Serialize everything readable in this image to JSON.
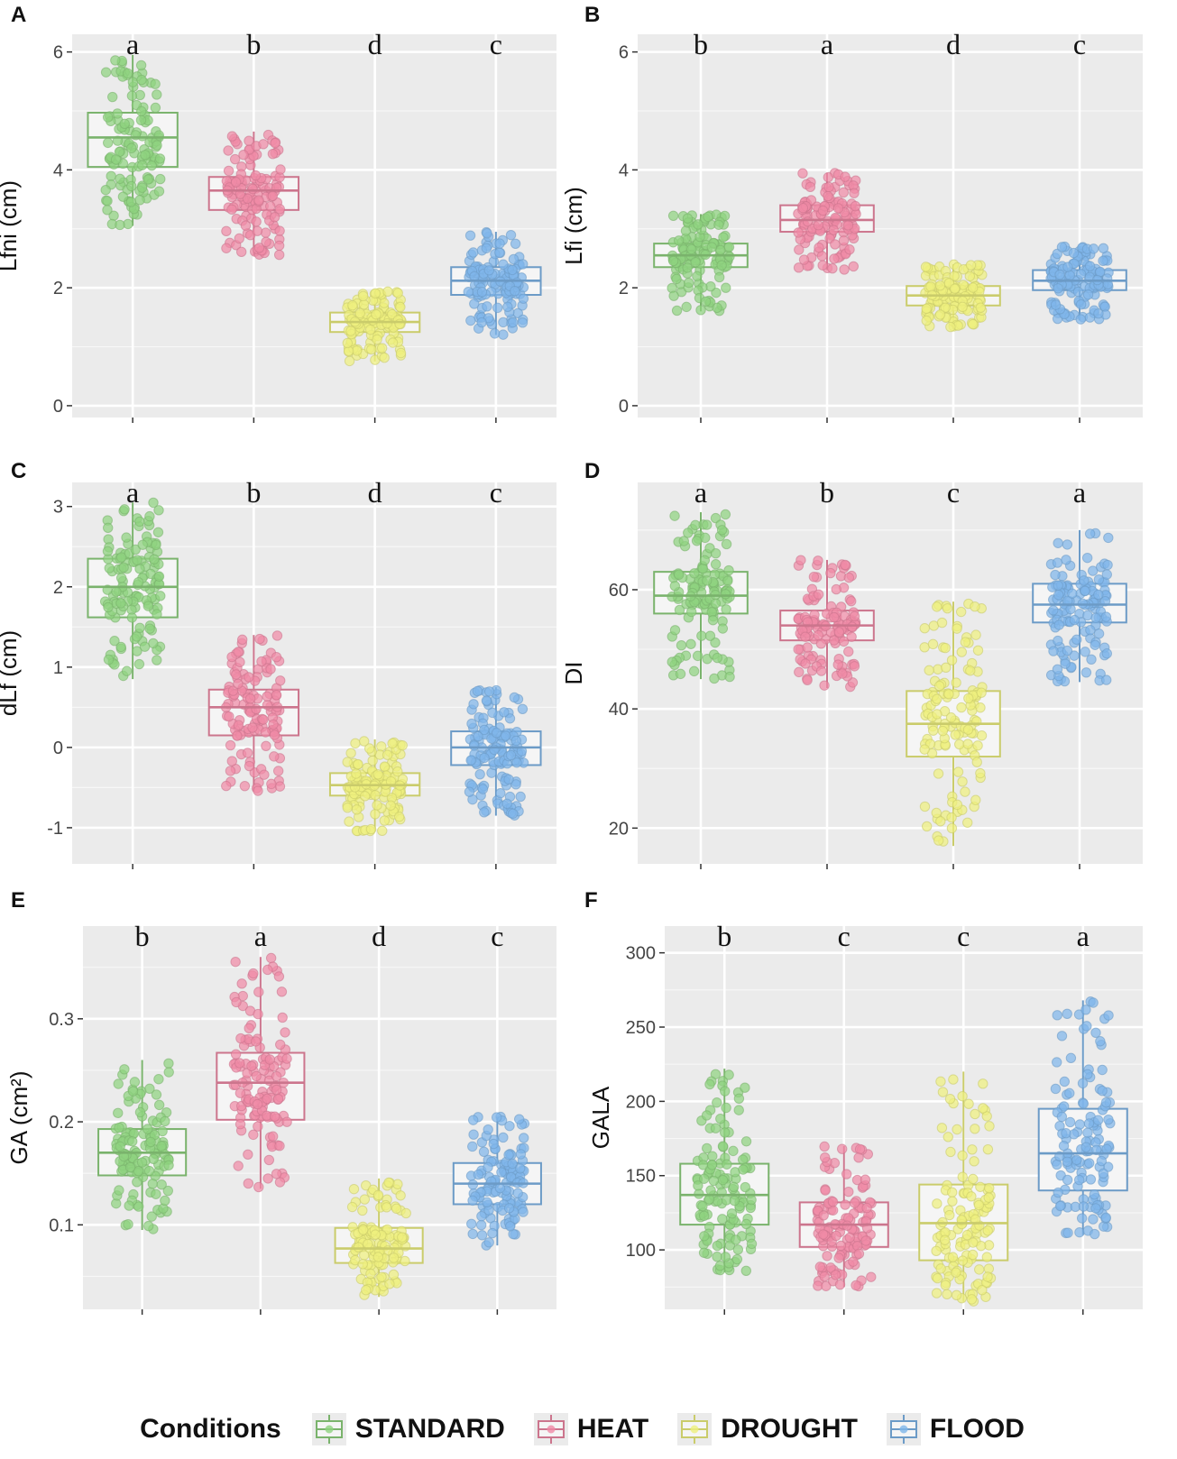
{
  "legend": {
    "title": "Conditions",
    "items": [
      {
        "label": "STANDARD",
        "color": "#8fd37f"
      },
      {
        "label": "HEAT",
        "color": "#f08aa6"
      },
      {
        "label": "DROUGHT",
        "color": "#eef07e"
      },
      {
        "label": "FLOOD",
        "color": "#7fb6ea"
      }
    ]
  },
  "chart_data": [
    {
      "panel": "A",
      "type": "box",
      "ylabel": "Lfni (cm)",
      "categories": [
        "STANDARD",
        "HEAT",
        "DROUGHT",
        "FLOOD"
      ],
      "ylim": [
        -0.2,
        6.3
      ],
      "yticks": [
        0,
        2,
        4,
        6
      ],
      "ytick_labels": [
        "0",
        "2",
        "4",
        "6"
      ],
      "letters": [
        "a",
        "b",
        "d",
        "c"
      ],
      "series": [
        {
          "name": "STANDARD",
          "q1": 4.05,
          "median": 4.55,
          "q3": 4.97,
          "whisker_low": 3.05,
          "whisker_high": 5.95
        },
        {
          "name": "HEAT",
          "q1": 3.32,
          "median": 3.65,
          "q3": 3.88,
          "whisker_low": 2.55,
          "whisker_high": 4.65
        },
        {
          "name": "DROUGHT",
          "q1": 1.25,
          "median": 1.42,
          "q3": 1.58,
          "whisker_low": 0.75,
          "whisker_high": 1.95
        },
        {
          "name": "FLOOD",
          "q1": 1.88,
          "median": 2.12,
          "q3": 2.35,
          "whisker_low": 1.2,
          "whisker_high": 2.95
        }
      ]
    },
    {
      "panel": "B",
      "type": "box",
      "ylabel": "Lfi (cm)",
      "categories": [
        "STANDARD",
        "HEAT",
        "DROUGHT",
        "FLOOD"
      ],
      "ylim": [
        -0.2,
        6.3
      ],
      "yticks": [
        0,
        2,
        4,
        6
      ],
      "ytick_labels": [
        "0",
        "2",
        "4",
        "6"
      ],
      "letters": [
        "b",
        "a",
        "d",
        "c"
      ],
      "series": [
        {
          "name": "STANDARD",
          "q1": 2.35,
          "median": 2.55,
          "q3": 2.75,
          "whisker_low": 1.6,
          "whisker_high": 3.25
        },
        {
          "name": "HEAT",
          "q1": 2.95,
          "median": 3.15,
          "q3": 3.4,
          "whisker_low": 2.3,
          "whisker_high": 3.95
        },
        {
          "name": "DROUGHT",
          "q1": 1.7,
          "median": 1.87,
          "q3": 2.03,
          "whisker_low": 1.3,
          "whisker_high": 2.4
        },
        {
          "name": "FLOOD",
          "q1": 1.96,
          "median": 2.12,
          "q3": 2.3,
          "whisker_low": 1.45,
          "whisker_high": 2.7
        }
      ]
    },
    {
      "panel": "C",
      "type": "box",
      "ylabel": "dLf (cm)",
      "categories": [
        "STANDARD",
        "HEAT",
        "DROUGHT",
        "FLOOD"
      ],
      "ylim": [
        -1.45,
        3.3
      ],
      "yticks": [
        -1,
        0,
        1,
        2,
        3
      ],
      "ytick_labels": [
        "-1",
        "0",
        "1",
        "2",
        "3"
      ],
      "letters": [
        "a",
        "b",
        "d",
        "c"
      ],
      "series": [
        {
          "name": "STANDARD",
          "q1": 1.62,
          "median": 2.0,
          "q3": 2.35,
          "whisker_low": 0.85,
          "whisker_high": 3.05
        },
        {
          "name": "HEAT",
          "q1": 0.15,
          "median": 0.5,
          "q3": 0.72,
          "whisker_low": -0.55,
          "whisker_high": 1.4
        },
        {
          "name": "DROUGHT",
          "q1": -0.6,
          "median": -0.47,
          "q3": -0.32,
          "whisker_low": -1.05,
          "whisker_high": 0.1
        },
        {
          "name": "FLOOD",
          "q1": -0.22,
          "median": 0.0,
          "q3": 0.2,
          "whisker_low": -0.85,
          "whisker_high": 0.75
        }
      ]
    },
    {
      "panel": "D",
      "type": "box",
      "ylabel": "DI",
      "categories": [
        "STANDARD",
        "HEAT",
        "DROUGHT",
        "FLOOD"
      ],
      "ylim": [
        14,
        78
      ],
      "yticks": [
        20,
        40,
        60
      ],
      "ytick_labels": [
        "20",
        "40",
        "60"
      ],
      "letters": [
        "a",
        "b",
        "c",
        "a"
      ],
      "series": [
        {
          "name": "STANDARD",
          "q1": 56.0,
          "median": 59.0,
          "q3": 63.0,
          "whisker_low": 45.0,
          "whisker_high": 73.0
        },
        {
          "name": "HEAT",
          "q1": 51.5,
          "median": 54.0,
          "q3": 56.5,
          "whisker_low": 43.5,
          "whisker_high": 65.0
        },
        {
          "name": "DROUGHT",
          "q1": 32.0,
          "median": 37.5,
          "q3": 43.0,
          "whisker_low": 17.0,
          "whisker_high": 58.0
        },
        {
          "name": "FLOOD",
          "q1": 54.5,
          "median": 57.5,
          "q3": 61.0,
          "whisker_low": 44.5,
          "whisker_high": 70.0
        }
      ]
    },
    {
      "panel": "E",
      "type": "box",
      "ylabel": "GA (cm²)",
      "categories": [
        "STANDARD",
        "HEAT",
        "DROUGHT",
        "FLOOD"
      ],
      "ylim": [
        0.018,
        0.39
      ],
      "yticks": [
        0.1,
        0.2,
        0.3
      ],
      "ytick_labels": [
        "0.1",
        "0.2",
        "0.3"
      ],
      "letters": [
        "b",
        "a",
        "d",
        "c"
      ],
      "series": [
        {
          "name": "STANDARD",
          "q1": 0.148,
          "median": 0.17,
          "q3": 0.193,
          "whisker_low": 0.095,
          "whisker_high": 0.26
        },
        {
          "name": "HEAT",
          "q1": 0.202,
          "median": 0.238,
          "q3": 0.267,
          "whisker_low": 0.135,
          "whisker_high": 0.36
        },
        {
          "name": "DROUGHT",
          "q1": 0.063,
          "median": 0.077,
          "q3": 0.097,
          "whisker_low": 0.03,
          "whisker_high": 0.145
        },
        {
          "name": "FLOOD",
          "q1": 0.12,
          "median": 0.14,
          "q3": 0.16,
          "whisker_low": 0.08,
          "whisker_high": 0.205
        }
      ]
    },
    {
      "panel": "F",
      "type": "box",
      "ylabel": "GALA",
      "categories": [
        "STANDARD",
        "HEAT",
        "DROUGHT",
        "FLOOD"
      ],
      "ylim": [
        60,
        318
      ],
      "yticks": [
        100,
        150,
        200,
        250,
        300
      ],
      "ytick_labels": [
        "100",
        "150",
        "200",
        "250",
        "300"
      ],
      "letters": [
        "b",
        "c",
        "c",
        "a"
      ],
      "series": [
        {
          "name": "STANDARD",
          "q1": 117.0,
          "median": 137.0,
          "q3": 158.0,
          "whisker_low": 85.0,
          "whisker_high": 222.0
        },
        {
          "name": "HEAT",
          "q1": 102.0,
          "median": 117.0,
          "q3": 132.0,
          "whisker_low": 75.0,
          "whisker_high": 170.0
        },
        {
          "name": "DROUGHT",
          "q1": 93.0,
          "median": 118.0,
          "q3": 144.0,
          "whisker_low": 65.0,
          "whisker_high": 220.0
        },
        {
          "name": "FLOOD",
          "q1": 140.0,
          "median": 165.0,
          "q3": 195.0,
          "whisker_low": 110.0,
          "whisker_high": 268.0
        }
      ]
    }
  ]
}
